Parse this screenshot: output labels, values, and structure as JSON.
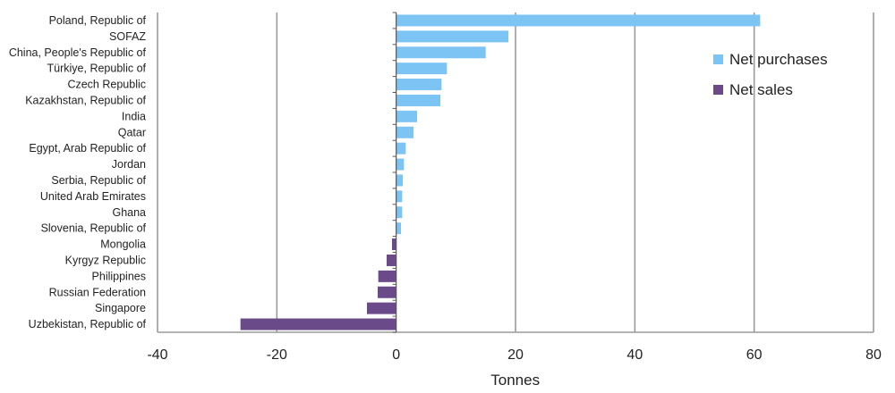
{
  "chart_data": {
    "type": "bar",
    "orientation": "horizontal",
    "categories": [
      "Poland, Republic of",
      "SOFAZ",
      "China, People's Republic of",
      "Türkiye, Republic of",
      "Czech Republic",
      "Kazakhstan, Republic of",
      "India",
      "Qatar",
      "Egypt, Arab Republic of",
      "Jordan",
      "Serbia, Republic of",
      "United Arab Emirates",
      "Ghana",
      "Slovenia, Republic of",
      "Mongolia",
      "Kyrgyz Republic",
      "Philippines",
      "Russian Federation",
      "Singapore",
      "Uzbekistan, Republic of"
    ],
    "values": [
      61,
      18.8,
      15,
      8.5,
      7.6,
      7.4,
      3.5,
      2.9,
      1.6,
      1.3,
      1.1,
      1.0,
      1.0,
      0.8,
      -0.7,
      -1.6,
      -3.0,
      -3.1,
      -4.9,
      -26.1
    ],
    "xlabel": "Tonnes",
    "ylabel": "",
    "xlim": [
      -40,
      80
    ],
    "xticks": [
      -40,
      -20,
      0,
      20,
      40,
      60,
      80
    ],
    "grid": "vertical",
    "legend": {
      "placement": "top-right",
      "entries": [
        {
          "name": "Net purchases",
          "color": "#7cc4f4"
        },
        {
          "name": "Net sales",
          "color": "#6b4a8a"
        }
      ]
    },
    "colors": {
      "positive": "#7cc4f4",
      "negative": "#6b4a8a",
      "grid": "#9a9a9a"
    }
  }
}
